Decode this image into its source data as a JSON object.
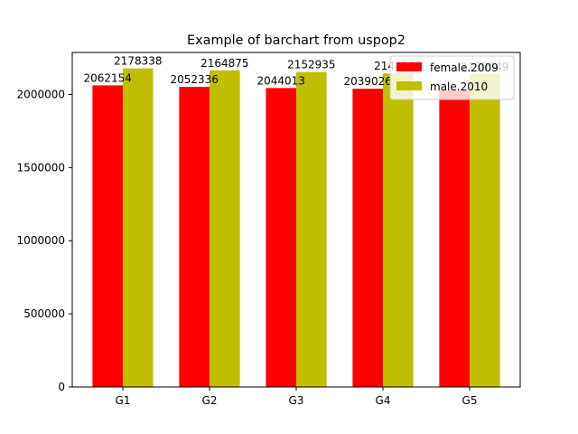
{
  "chart_data": {
    "type": "bar",
    "title": "Example of barchart from uspop2",
    "xlabel": "",
    "ylabel": "",
    "categories": [
      "G1",
      "G2",
      "G3",
      "G4",
      "G5"
    ],
    "series": [
      {
        "name": "female.2009",
        "color": "#ff0000",
        "values": [
          2062154,
          2052336,
          2044013,
          2039026,
          2030000
        ]
      },
      {
        "name": "male.2010",
        "color": "#bfbf00",
        "values": [
          2178338,
          2164875,
          2152935,
          2144067,
          2139049
        ]
      }
    ],
    "data_labels": [
      [
        "2062154",
        "2052336",
        "2044013",
        "2039026",
        ""
      ],
      [
        "2178338",
        "2164875",
        "2152935",
        "2144067",
        "2139049"
      ]
    ],
    "ylim": [
      0,
      2287255
    ],
    "yticks": [
      0,
      500000,
      1000000,
      1500000,
      2000000
    ],
    "legend_position": "top-right",
    "grid": false
  }
}
